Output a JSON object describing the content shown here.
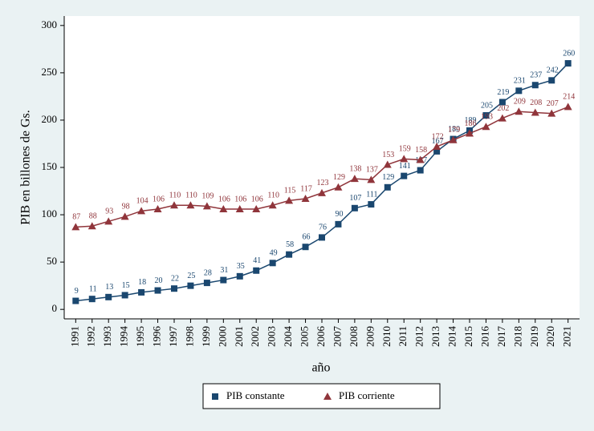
{
  "chart_data": {
    "type": "line",
    "x": [
      1991,
      1992,
      1993,
      1994,
      1995,
      1996,
      1997,
      1998,
      1999,
      2000,
      2001,
      2002,
      2003,
      2004,
      2005,
      2006,
      2007,
      2008,
      2009,
      2010,
      2011,
      2012,
      2013,
      2014,
      2015,
      2016,
      2017,
      2018,
      2019,
      2020,
      2021
    ],
    "series": [
      {
        "name": "PIB constante",
        "color": "#1a476f",
        "marker": "square",
        "values": [
          9,
          11,
          13,
          15,
          18,
          20,
          22,
          25,
          28,
          31,
          35,
          41,
          49,
          58,
          66,
          76,
          90,
          107,
          111,
          129,
          141,
          147,
          167,
          180,
          189,
          205,
          219,
          231,
          237,
          242,
          260
        ]
      },
      {
        "name": "PIB corriente",
        "color": "#90353b",
        "marker": "triangle",
        "values": [
          87,
          88,
          93,
          98,
          104,
          106,
          110,
          110,
          109,
          106,
          106,
          106,
          110,
          115,
          117,
          123,
          129,
          138,
          137,
          153,
          159,
          158,
          172,
          179,
          186,
          193,
          202,
          209,
          208,
          207,
          214
        ]
      }
    ],
    "xlim": [
      1990.3,
      2021.7
    ],
    "xticks": [
      1991,
      1992,
      1993,
      1994,
      1995,
      1996,
      1997,
      1998,
      1999,
      2000,
      2001,
      2002,
      2003,
      2004,
      2005,
      2006,
      2007,
      2008,
      2009,
      2010,
      2011,
      2012,
      2013,
      2014,
      2015,
      2016,
      2017,
      2018,
      2019,
      2020,
      2021
    ],
    "ylim": [
      -10,
      310
    ],
    "yticks": [
      0,
      50,
      100,
      150,
      200,
      250,
      300
    ],
    "y_label": "PIB en billones de Gs.",
    "x_label": "año",
    "grid": false,
    "legend": "bottom"
  }
}
